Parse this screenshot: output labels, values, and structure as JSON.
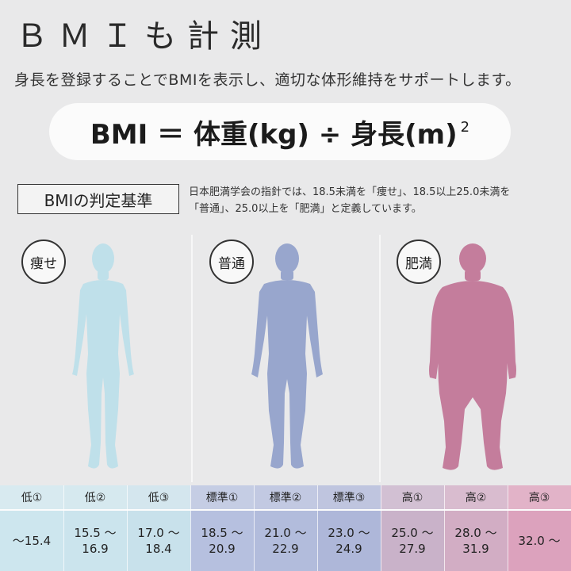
{
  "title": "ＢＭＩも計測",
  "subtitle": "身長を登録することでBMIを表示し、適切な体形維持をサポートします。",
  "formula": {
    "text": "BMI ＝ 体重(kg) ÷ 身長(m)",
    "exponent": "2"
  },
  "criteria": {
    "label": "BMIの判定基準",
    "line1": "日本肥満学会の指針では、18.5未満を「痩せ」、18.5以上25.0未満を",
    "line2": "「普通」、25.0以上を「肥満」と定義しています。"
  },
  "categories": [
    {
      "label": "痩せ",
      "color": "#bfe0ea"
    },
    {
      "label": "普通",
      "color": "#98a6cd"
    },
    {
      "label": "肥満",
      "color": "#c47d9c"
    }
  ],
  "levels": [
    {
      "name": "低①",
      "range1": "〜15.4",
      "range2": ""
    },
    {
      "name": "低②",
      "range1": "15.5 〜",
      "range2": "16.9"
    },
    {
      "name": "低③",
      "range1": "17.0 〜",
      "range2": "18.4"
    },
    {
      "name": "標準①",
      "range1": "18.5 〜",
      "range2": "20.9"
    },
    {
      "name": "標準②",
      "range1": "21.0 〜",
      "range2": "22.9"
    },
    {
      "name": "標準③",
      "range1": "23.0 〜",
      "range2": "24.9"
    },
    {
      "name": "高①",
      "range1": "25.0 〜",
      "range2": "27.9"
    },
    {
      "name": "高②",
      "range1": "28.0 〜",
      "range2": "31.9"
    },
    {
      "name": "高③",
      "range1": "32.0 〜",
      "range2": ""
    }
  ]
}
